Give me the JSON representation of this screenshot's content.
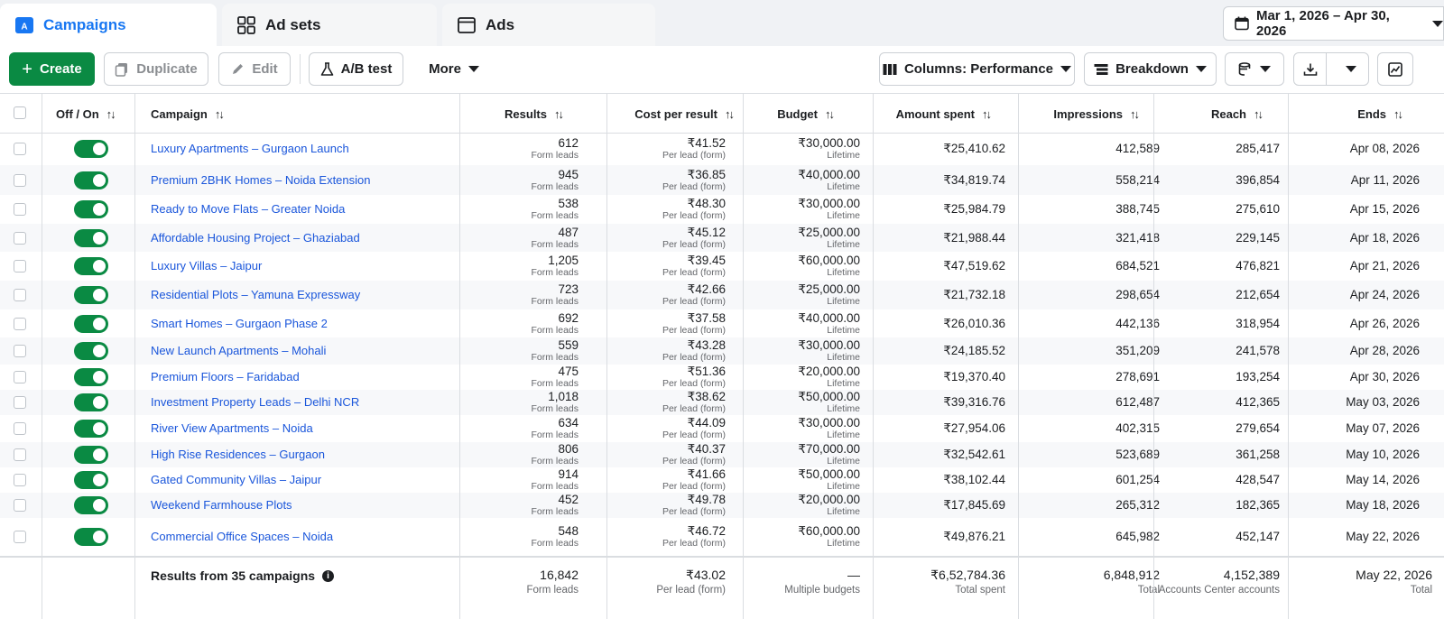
{
  "tabs": [
    {
      "label": "Campaigns",
      "icon": "campaigns-icon",
      "active": true
    },
    {
      "label": "Ad sets",
      "icon": "grid-icon",
      "active": false
    },
    {
      "label": "Ads",
      "icon": "ad-window-icon",
      "active": false
    }
  ],
  "date_range": "Mar 1, 2026 – Apr 30, 2026",
  "toolbar": {
    "create": "Create",
    "duplicate": "Duplicate",
    "edit": "Edit",
    "ab_test": "A/B test",
    "more": "More",
    "columns": "Columns: Performance",
    "breakdown": "Breakdown"
  },
  "columns": {
    "off_on": "Off / On",
    "campaign": "Campaign",
    "results": "Results",
    "cost_per_result": "Cost per result",
    "budget": "Budget",
    "amount_spent": "Amount spent",
    "impressions": "Impressions",
    "reach": "Reach",
    "ends": "Ends"
  },
  "rows": [
    {
      "name": "Luxury Apartments – Gurgaon Launch",
      "results": "612",
      "results_sub": "Form leads",
      "cpr": "₹41.52",
      "cpr_sub": "Per lead (form)",
      "budget": "₹30,000.00",
      "budget_sub": "Lifetime",
      "spent": "₹25,410.62",
      "impressions": "412,589",
      "reach": "285,417",
      "ends": "Apr 08, 2026"
    },
    {
      "name": "Premium 2BHK Homes – Noida Extension",
      "results": "945",
      "results_sub": "Form leads",
      "cpr": "₹36.85",
      "cpr_sub": "Per lead (form)",
      "budget": "₹40,000.00",
      "budget_sub": "Lifetime",
      "spent": "₹34,819.74",
      "impressions": "558,214",
      "reach": "396,854",
      "ends": "Apr 11, 2026"
    },
    {
      "name": "Ready to Move Flats – Greater Noida",
      "results": "538",
      "results_sub": "Form leads",
      "cpr": "₹48.30",
      "cpr_sub": "Per lead (form)",
      "budget": "₹30,000.00",
      "budget_sub": "Lifetime",
      "spent": "₹25,984.79",
      "impressions": "388,745",
      "reach": "275,610",
      "ends": "Apr 15, 2026"
    },
    {
      "name": "Affordable Housing Project – Ghaziabad",
      "results": "487",
      "results_sub": "Form leads",
      "cpr": "₹45.12",
      "cpr_sub": "Per lead (form)",
      "budget": "₹25,000.00",
      "budget_sub": "Lifetime",
      "spent": "₹21,988.44",
      "impressions": "321,418",
      "reach": "229,145",
      "ends": "Apr 18, 2026"
    },
    {
      "name": "Luxury Villas – Jaipur",
      "results": "1,205",
      "results_sub": "Form leads",
      "cpr": "₹39.45",
      "cpr_sub": "Per lead (form)",
      "budget": "₹60,000.00",
      "budget_sub": "Lifetime",
      "spent": "₹47,519.62",
      "impressions": "684,521",
      "reach": "476,821",
      "ends": "Apr 21, 2026"
    },
    {
      "name": "Residential Plots – Yamuna Expressway",
      "results": "723",
      "results_sub": "Form leads",
      "cpr": "₹42.66",
      "cpr_sub": "Per lead (form)",
      "budget": "₹25,000.00",
      "budget_sub": "Lifetime",
      "spent": "₹21,732.18",
      "impressions": "298,654",
      "reach": "212,654",
      "ends": "Apr 24, 2026"
    },
    {
      "name": "Smart Homes – Gurgaon Phase 2",
      "results": "692",
      "results_sub": "Form leads",
      "cpr": "₹37.58",
      "cpr_sub": "Per lead (form)",
      "budget": "₹40,000.00",
      "budget_sub": "Lifetime",
      "spent": "₹26,010.36",
      "impressions": "442,136",
      "reach": "318,954",
      "ends": "Apr 26, 2026"
    },
    {
      "name": "New Launch Apartments – Mohali",
      "results": "559",
      "results_sub": "Form leads",
      "cpr": "₹43.28",
      "cpr_sub": "Per lead (form)",
      "budget": "₹30,000.00",
      "budget_sub": "Lifetime",
      "spent": "₹24,185.52",
      "impressions": "351,209",
      "reach": "241,578",
      "ends": "Apr 28, 2026"
    },
    {
      "name": "Premium Floors – Faridabad",
      "results": "475",
      "results_sub": "Form leads",
      "cpr": "₹51.36",
      "cpr_sub": "Per lead (form)",
      "budget": "₹20,000.00",
      "budget_sub": "Lifetime",
      "spent": "₹19,370.40",
      "impressions": "278,691",
      "reach": "193,254",
      "ends": "Apr 30, 2026"
    },
    {
      "name": "Investment Property Leads – Delhi NCR",
      "results": "1,018",
      "results_sub": "Form leads",
      "cpr": "₹38.62",
      "cpr_sub": "Per lead (form)",
      "budget": "₹50,000.00",
      "budget_sub": "Lifetime",
      "spent": "₹39,316.76",
      "impressions": "612,487",
      "reach": "412,365",
      "ends": "May 03, 2026"
    },
    {
      "name": "River View Apartments – Noida",
      "results": "634",
      "results_sub": "Form leads",
      "cpr": "₹44.09",
      "cpr_sub": "Per lead (form)",
      "budget": "₹30,000.00",
      "budget_sub": "Lifetime",
      "spent": "₹27,954.06",
      "impressions": "402,315",
      "reach": "279,654",
      "ends": "May 07, 2026"
    },
    {
      "name": "High Rise Residences – Gurgaon",
      "results": "806",
      "results_sub": "Form leads",
      "cpr": "₹40.37",
      "cpr_sub": "Per lead (form)",
      "budget": "₹70,000.00",
      "budget_sub": "Lifetime",
      "spent": "₹32,542.61",
      "impressions": "523,689",
      "reach": "361,258",
      "ends": "May 10, 2026"
    },
    {
      "name": "Gated Community Villas – Jaipur",
      "results": "914",
      "results_sub": "Form leads",
      "cpr": "₹41.66",
      "cpr_sub": "Per lead (form)",
      "budget": "₹50,000.00",
      "budget_sub": "Lifetime",
      "spent": "₹38,102.44",
      "impressions": "601,254",
      "reach": "428,547",
      "ends": "May 14, 2026"
    },
    {
      "name": "Weekend Farmhouse Plots",
      "results": "452",
      "results_sub": "Form leads",
      "cpr": "₹49.78",
      "cpr_sub": "Per lead (form)",
      "budget": "₹20,000.00",
      "budget_sub": "Lifetime",
      "spent": "₹17,845.69",
      "impressions": "265,312",
      "reach": "182,365",
      "ends": "May 18, 2026"
    },
    {
      "name": "Commercial Office Spaces – Noida",
      "results": "548",
      "results_sub": "Form leads",
      "cpr": "₹46.72",
      "cpr_sub": "Per lead (form)",
      "budget": "₹60,000.00",
      "budget_sub": "Lifetime",
      "spent": "₹49,876.21",
      "impressions": "645,982",
      "reach": "452,147",
      "ends": "May 22, 2026"
    }
  ],
  "footer": {
    "label": "Results from 35 campaigns",
    "results": "16,842",
    "results_sub": "Form leads",
    "cpr": "₹43.02",
    "cpr_sub": "Per lead (form)",
    "budget": "—",
    "budget_sub": "Multiple budgets",
    "spent": "₹6,52,784.36",
    "spent_sub": "Total spent",
    "impressions": "6,848,912",
    "impressions_sub": "Total",
    "reach": "4,152,389",
    "reach_sub": "Accounts Center accounts",
    "ends": "May 22, 2026",
    "ends_sub": "Total"
  },
  "colors": {
    "accent": "#1877f2",
    "create_green": "#0a8a43",
    "link_blue": "#1a56db"
  }
}
